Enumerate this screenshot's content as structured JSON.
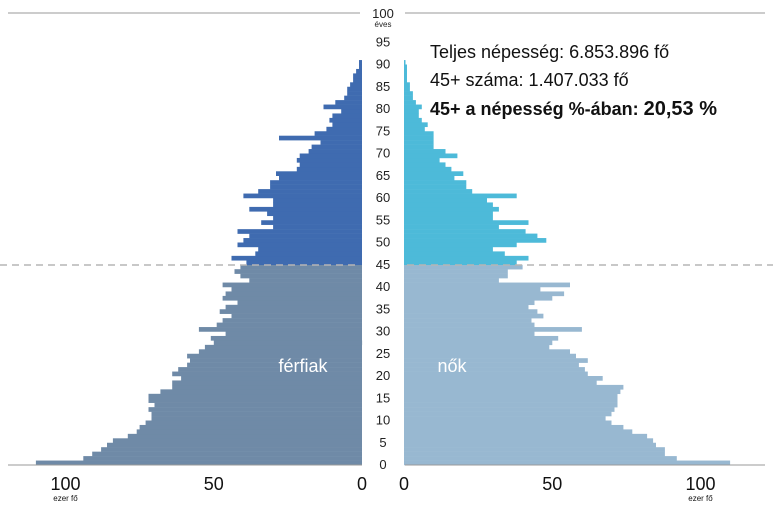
{
  "stats": {
    "total_label": "Teljes népesség: 6.853.896 fő",
    "over45_label": "45+ száma: 1.407.033 fő",
    "share_prefix": "45+ a népesség %-ában: ",
    "share_value": "20,53 %"
  },
  "chart_data": {
    "type": "bar",
    "orientation": "horizontal",
    "subtype": "population-pyramid",
    "age_axis": {
      "ticks": [
        "0",
        "5",
        "10",
        "15",
        "20",
        "25",
        "30",
        "35",
        "40",
        "45",
        "50",
        "55",
        "60",
        "65",
        "70",
        "75",
        "80",
        "85",
        "90",
        "95",
        "100"
      ],
      "top_label": "100",
      "unit": "éves"
    },
    "x_axis_left": {
      "ticks": [
        "100",
        "50",
        "0"
      ],
      "unit": "ezer fő",
      "range": [
        0,
        110
      ]
    },
    "x_axis_right": {
      "ticks": [
        "0",
        "50",
        "100"
      ],
      "unit": "ezer fő",
      "range": [
        0,
        110
      ]
    },
    "threshold_age": 45,
    "series": [
      {
        "name": "férfiak",
        "values": [
          110,
          94,
          91,
          88,
          86,
          84,
          79,
          76,
          75,
          73,
          71,
          71,
          72,
          70,
          72,
          72,
          68,
          64,
          64,
          61,
          64,
          62,
          59,
          58,
          59,
          55,
          53,
          50,
          51,
          46,
          55,
          49,
          47,
          44,
          48,
          46,
          42,
          47,
          46,
          44,
          47,
          38,
          41,
          43,
          41,
          39,
          44,
          36,
          35,
          42,
          40,
          38,
          42,
          30,
          34,
          30,
          32,
          38,
          30,
          30,
          40,
          35,
          31,
          31,
          28,
          29,
          22,
          21,
          22,
          21,
          18,
          17,
          14,
          28,
          16,
          12,
          10,
          11,
          10,
          7,
          13,
          9,
          6,
          5,
          5,
          4,
          3,
          3,
          2,
          1,
          1
        ],
        "colors": {
          "below_threshold": "#6f8aa7",
          "above_threshold": "#3f6bb0"
        }
      },
      {
        "name": "nők",
        "values": [
          110,
          92,
          88,
          88,
          85,
          84,
          82,
          77,
          74,
          70,
          68,
          70,
          71,
          72,
          72,
          72,
          73,
          74,
          65,
          67,
          62,
          61,
          59,
          62,
          58,
          56,
          49,
          50,
          52,
          44,
          60,
          44,
          43,
          47,
          45,
          42,
          44,
          50,
          54,
          46,
          56,
          32,
          35,
          35,
          40,
          38,
          42,
          34,
          30,
          38,
          48,
          45,
          41,
          32,
          42,
          30,
          30,
          32,
          30,
          28,
          38,
          23,
          21,
          21,
          17,
          20,
          16,
          14,
          12,
          18,
          14,
          10,
          10,
          10,
          10,
          7,
          8,
          6,
          5,
          5,
          6,
          4,
          3,
          3,
          2,
          2,
          1,
          1,
          1,
          1,
          0.5
        ],
        "colors": {
          "below_threshold": "#98b8d1",
          "above_threshold": "#4dbad9"
        }
      }
    ]
  }
}
